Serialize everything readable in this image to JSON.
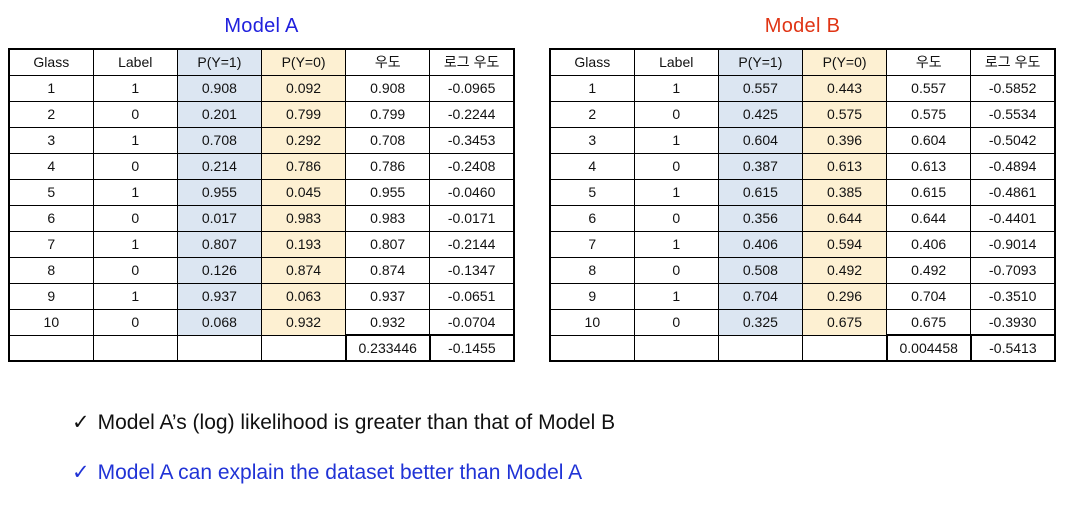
{
  "slide": {
    "tables": [
      {
        "id": "model-a",
        "title": "Model A",
        "title_color": "#2020dd",
        "headers": [
          "Glass",
          "Label",
          "P(Y=1)",
          "P(Y=0)",
          "우도",
          "로그 우도"
        ],
        "rows": [
          [
            "1",
            "1",
            "0.908",
            "0.092",
            "0.908",
            "-0.0965"
          ],
          [
            "2",
            "0",
            "0.201",
            "0.799",
            "0.799",
            "-0.2244"
          ],
          [
            "3",
            "1",
            "0.708",
            "0.292",
            "0.708",
            "-0.3453"
          ],
          [
            "4",
            "0",
            "0.214",
            "0.786",
            "0.786",
            "-0.2408"
          ],
          [
            "5",
            "1",
            "0.955",
            "0.045",
            "0.955",
            "-0.0460"
          ],
          [
            "6",
            "0",
            "0.017",
            "0.983",
            "0.983",
            "-0.0171"
          ],
          [
            "7",
            "1",
            "0.807",
            "0.193",
            "0.807",
            "-0.2144"
          ],
          [
            "8",
            "0",
            "0.126",
            "0.874",
            "0.874",
            "-0.1347"
          ],
          [
            "9",
            "1",
            "0.937",
            "0.063",
            "0.937",
            "-0.0651"
          ],
          [
            "10",
            "0",
            "0.068",
            "0.932",
            "0.932",
            "-0.0704"
          ]
        ],
        "total": {
          "likelihood": "0.233446",
          "log_likelihood": "-0.1455"
        }
      },
      {
        "id": "model-b",
        "title": "Model B",
        "title_color": "#e03414",
        "headers": [
          "Glass",
          "Label",
          "P(Y=1)",
          "P(Y=0)",
          "우도",
          "로그 우도"
        ],
        "rows": [
          [
            "1",
            "1",
            "0.557",
            "0.443",
            "0.557",
            "-0.5852"
          ],
          [
            "2",
            "0",
            "0.425",
            "0.575",
            "0.575",
            "-0.5534"
          ],
          [
            "3",
            "1",
            "0.604",
            "0.396",
            "0.604",
            "-0.5042"
          ],
          [
            "4",
            "0",
            "0.387",
            "0.613",
            "0.613",
            "-0.4894"
          ],
          [
            "5",
            "1",
            "0.615",
            "0.385",
            "0.615",
            "-0.4861"
          ],
          [
            "6",
            "0",
            "0.356",
            "0.644",
            "0.644",
            "-0.4401"
          ],
          [
            "7",
            "1",
            "0.406",
            "0.594",
            "0.406",
            "-0.9014"
          ],
          [
            "8",
            "0",
            "0.508",
            "0.492",
            "0.492",
            "-0.7093"
          ],
          [
            "9",
            "1",
            "0.704",
            "0.296",
            "0.704",
            "-0.3510"
          ],
          [
            "10",
            "0",
            "0.325",
            "0.675",
            "0.675",
            "-0.3930"
          ]
        ],
        "total": {
          "likelihood": "0.004458",
          "log_likelihood": "-0.5413"
        }
      }
    ],
    "bullets": [
      {
        "check": "✓",
        "text": "Model A’s (log) likelihood is greater than that of Model B",
        "color": "#111111"
      },
      {
        "check": "✓",
        "text": "Model A can explain the dataset better than Model A",
        "color": "#2033d6"
      }
    ],
    "colors": {
      "p_y1_column_bg": "#dce6f2",
      "p_y0_column_bg": "#fdf0d2",
      "model_a_title": "#2020dd",
      "model_b_title": "#e03414"
    }
  }
}
